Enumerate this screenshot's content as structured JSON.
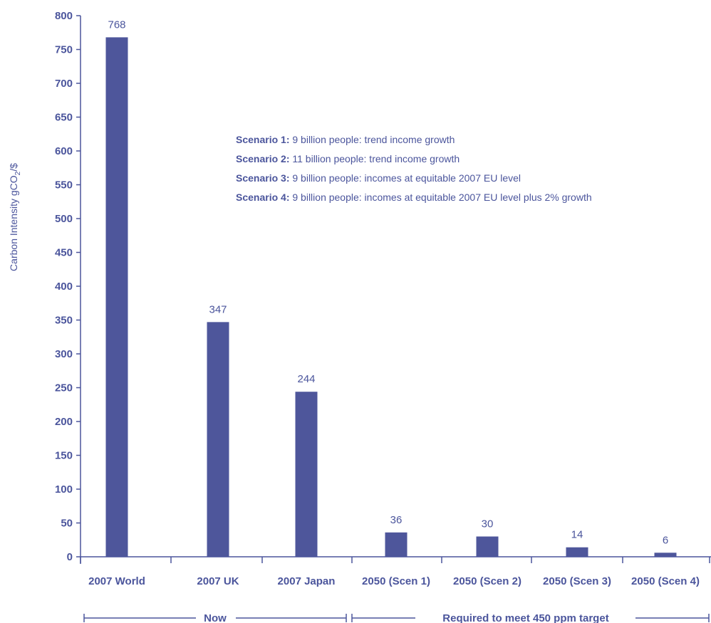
{
  "chart_data": {
    "type": "bar",
    "ylabel": "Carbon Intensity gCO",
    "ylabel_sub": "2",
    "ylabel_tail": "/$",
    "ylim": [
      0,
      800
    ],
    "yticks": [
      0,
      50,
      100,
      150,
      200,
      250,
      300,
      350,
      400,
      450,
      500,
      550,
      600,
      650,
      700,
      750,
      800
    ],
    "categories": [
      "2007 World",
      "2007 UK",
      "2007 Japan",
      "2050 (Scen 1)",
      "2050 (Scen 2)",
      "2050 (Scen 3)",
      "2050 (Scen 4)"
    ],
    "values": [
      768,
      347,
      244,
      36,
      30,
      14,
      6
    ],
    "value_labels": [
      "768",
      "347",
      "244",
      "36",
      "30",
      "14",
      "6"
    ],
    "color": "#4e569b",
    "grid": false,
    "legend": [
      {
        "key": "Scenario 1:",
        "text": " 9 billion people: trend income growth"
      },
      {
        "key": "Scenario 2:",
        "text": " 11 billion people: trend income growth"
      },
      {
        "key": "Scenario 3:",
        "text": " 9 billion people: incomes at equitable 2007 EU level"
      },
      {
        "key": "Scenario 4:",
        "text": " 9 billion people: incomes at equitable 2007 EU level plus 2% growth"
      }
    ],
    "groups": [
      {
        "label": "Now",
        "from": 0,
        "to": 2
      },
      {
        "label": "Required to meet 450 ppm target",
        "from": 3,
        "to": 6
      }
    ]
  }
}
